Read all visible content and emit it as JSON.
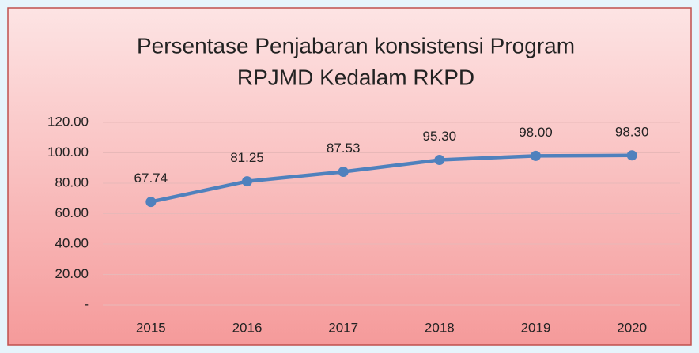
{
  "chart_data": {
    "type": "line",
    "title": [
      "Persentase Penjabaran konsistensi Program",
      "RPJMD Kedalam RKPD"
    ],
    "categories": [
      "2015",
      "2016",
      "2017",
      "2018",
      "2019",
      "2020"
    ],
    "values": [
      67.74,
      81.25,
      87.53,
      95.3,
      98.0,
      98.3
    ],
    "value_labels": [
      "67.74",
      "81.25",
      "87.53",
      "95.30",
      "98.00",
      "98.30"
    ],
    "color": "#4f81bd",
    "ylim": [
      0,
      120
    ],
    "yticks": [
      {
        "value": 0,
        "label": "-"
      },
      {
        "value": 20,
        "label": "20.00"
      },
      {
        "value": 40,
        "label": "40.00"
      },
      {
        "value": 60,
        "label": "60.00"
      },
      {
        "value": 80,
        "label": "80.00"
      },
      {
        "value": 100,
        "label": "100.00"
      },
      {
        "value": 120,
        "label": "120.00"
      }
    ],
    "grid": true
  }
}
